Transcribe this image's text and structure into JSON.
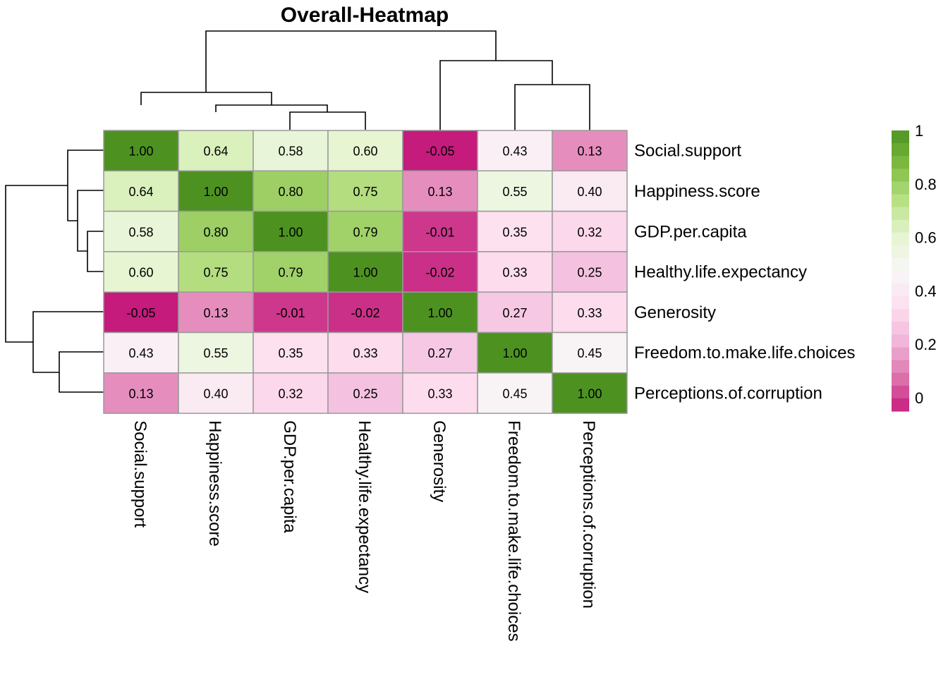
{
  "chart_data": {
    "type": "heatmap",
    "title": "Overall-Heatmap",
    "rows": [
      "Social.support",
      "Happiness.score",
      "GDP.per.capita",
      "Healthy.life.expectancy",
      "Generosity",
      "Freedom.to.make.life.choices",
      "Perceptions.of.corruption"
    ],
    "columns": [
      "Social.support",
      "Happiness.score",
      "GDP.per.capita",
      "Healthy.life.expectancy",
      "Generosity",
      "Freedom.to.make.life.choices",
      "Perceptions.of.corruption"
    ],
    "values": [
      [
        1.0,
        0.64,
        0.58,
        0.6,
        -0.05,
        0.43,
        0.13
      ],
      [
        0.64,
        1.0,
        0.8,
        0.75,
        0.13,
        0.55,
        0.4
      ],
      [
        0.58,
        0.8,
        1.0,
        0.79,
        -0.01,
        0.35,
        0.32
      ],
      [
        0.6,
        0.75,
        0.79,
        1.0,
        -0.02,
        0.33,
        0.25
      ],
      [
        -0.05,
        0.13,
        -0.01,
        -0.02,
        1.0,
        0.27,
        0.33
      ],
      [
        0.43,
        0.55,
        0.35,
        0.33,
        0.27,
        1.0,
        0.45
      ],
      [
        0.13,
        0.4,
        0.32,
        0.25,
        0.33,
        0.45,
        1.0
      ]
    ],
    "cell_labels": [
      [
        "1.00",
        "0.64",
        "0.58",
        "0.60",
        "-0.05",
        "0.43",
        "0.13"
      ],
      [
        "0.64",
        "1.00",
        "0.80",
        "0.75",
        "0.13",
        "0.55",
        "0.40"
      ],
      [
        "0.58",
        "0.80",
        "1.00",
        "0.79",
        "-0.01",
        "0.35",
        "0.32"
      ],
      [
        "0.60",
        "0.75",
        "0.79",
        "1.00",
        "-0.02",
        "0.33",
        "0.25"
      ],
      [
        "-0.05",
        "0.13",
        "-0.01",
        "-0.02",
        "1.00",
        "0.27",
        "0.33"
      ],
      [
        "0.43",
        "0.55",
        "0.35",
        "0.33",
        "0.27",
        "1.00",
        "0.45"
      ],
      [
        "0.13",
        "0.40",
        "0.32",
        "0.25",
        "0.33",
        "0.45",
        "1.00"
      ]
    ],
    "color_scale": {
      "min": -0.05,
      "max": 1.0,
      "colors": [
        "#c51b7d",
        "#de77ae",
        "#f1b6da",
        "#fde0ef",
        "#f7f7f7",
        "#e6f5d0",
        "#b8e186",
        "#7fbc41",
        "#4d9221"
      ]
    },
    "legend": {
      "placement": "right",
      "ticks": [
        "1",
        "0.8",
        "0.6",
        "0.4",
        "0.2",
        "0"
      ],
      "tick_values": [
        1,
        0.8,
        0.6,
        0.4,
        0.2,
        0
      ]
    },
    "row_dendrogram": true,
    "column_dendrogram": true
  }
}
